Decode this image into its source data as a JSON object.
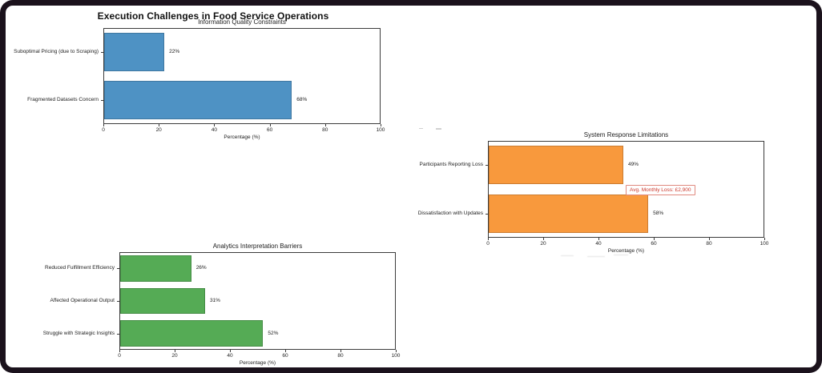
{
  "page": {
    "main_title": "Execution Challenges in Food Service Operations"
  },
  "chart_data": [
    {
      "type": "bar",
      "orientation": "horizontal",
      "position": "top-left",
      "title": "Information Quality Constraints",
      "categories": [
        "Suboptimal Pricing (due to Scraping)",
        "Fragmented Datasets Concern"
      ],
      "values": [
        22,
        68
      ],
      "value_labels": [
        "22%",
        "68%"
      ],
      "bar_color": "#4e92c4",
      "xlabel": "Percentage (%)",
      "xlim": [
        0,
        100
      ],
      "xticks": [
        0,
        20,
        40,
        60,
        80,
        100
      ],
      "grid": false,
      "legend": "none"
    },
    {
      "type": "bar",
      "orientation": "horizontal",
      "position": "middle-right",
      "title": "System Response Limitations",
      "categories": [
        "Participants Reporting Loss",
        "Dissatisfaction with Updates"
      ],
      "values": [
        49,
        58
      ],
      "value_labels": [
        "49%",
        "58%"
      ],
      "bar_color": "#f8993d",
      "xlabel": "Percentage (%)",
      "xlim": [
        0,
        100
      ],
      "xticks": [
        0,
        20,
        40,
        60,
        80,
        100
      ],
      "grid": false,
      "legend": "none",
      "annotation": {
        "text": "Avg. Monthly Loss: £2,900",
        "text_color": "#cc3a2e",
        "border_color": "#e08a80"
      }
    },
    {
      "type": "bar",
      "orientation": "horizontal",
      "position": "bottom-left",
      "title": "Analytics Interpretation Barriers",
      "categories": [
        "Reduced Fulfillment Efficiency",
        "Affected Operational Output",
        "Struggle with Strategic Insights"
      ],
      "values": [
        26,
        31,
        52
      ],
      "value_labels": [
        "26%",
        "31%",
        "52%"
      ],
      "bar_color": "#55ab55",
      "xlabel": "Percentage (%)",
      "xlim": [
        0,
        100
      ],
      "xticks": [
        0,
        20,
        40,
        60,
        80,
        100
      ],
      "grid": false,
      "legend": "none"
    }
  ]
}
